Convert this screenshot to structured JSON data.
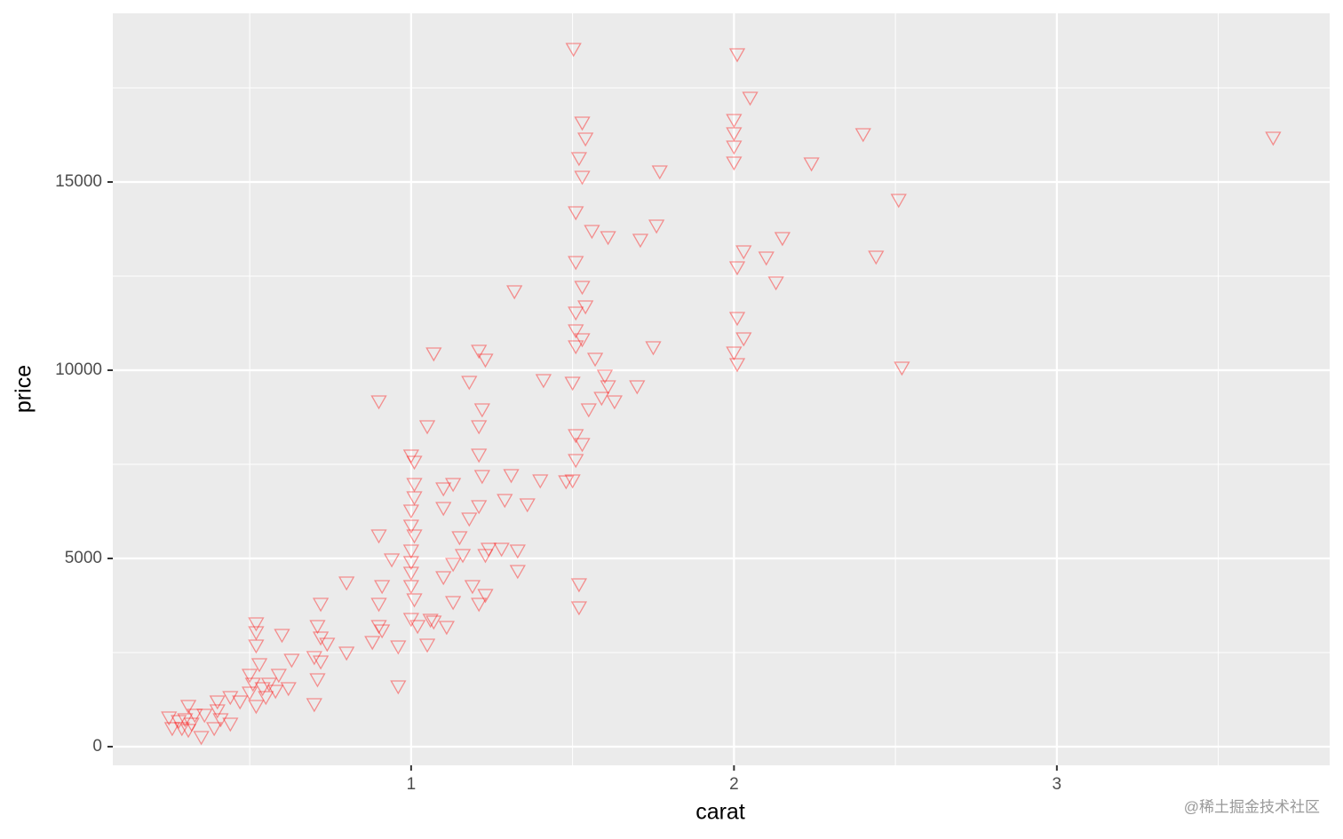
{
  "chart_data": {
    "type": "scatter",
    "x_label": "carat",
    "y_label": "price",
    "watermark": "@稀土掘金技术社区",
    "xlim": [
      0.076,
      3.845
    ],
    "ylim": [
      -495,
      19481
    ],
    "xticks": [
      1,
      2,
      3
    ],
    "yticks": [
      0,
      5000,
      10000,
      15000
    ],
    "grid": true,
    "marker": "triangle-down",
    "color": "#ff0000",
    "series": [
      {
        "name": "diamonds",
        "x": [
          1.503,
          2.01,
          2.05,
          2.0,
          2.0,
          2.0,
          2.0,
          2.4,
          3.67,
          2.24,
          2.51,
          1.53,
          1.54,
          1.52,
          1.53,
          1.77,
          1.51,
          1.56,
          1.61,
          1.71,
          1.76,
          2.15,
          2.03,
          2.1,
          2.01,
          2.13,
          2.44,
          1.51,
          1.53,
          1.32,
          1.54,
          1.51,
          1.51,
          1.53,
          1.51,
          2.01,
          2.03,
          2.0,
          2.01,
          1.75,
          2.52,
          1.07,
          1.21,
          1.23,
          1.18,
          1.41,
          1.5,
          1.57,
          1.6,
          1.61,
          1.59,
          1.63,
          1.55,
          1.7,
          0.9,
          1.22,
          1.21,
          1.05,
          1.51,
          1.53,
          1.51,
          1.5,
          1.48,
          1.31,
          1.4,
          1.22,
          1.21,
          1.29,
          1.36,
          1.13,
          1.1,
          1.1,
          1.18,
          1.21,
          1.0,
          1.01,
          1.01,
          1.01,
          1.0,
          1.0,
          1.01,
          1.0,
          1.0,
          1.0,
          1.0,
          1.01,
          1.0,
          1.02,
          1.05,
          1.06,
          0.9,
          0.94,
          0.91,
          0.9,
          0.9,
          0.91,
          0.88,
          0.96,
          0.8,
          0.72,
          0.71,
          0.72,
          0.72,
          0.7,
          0.71,
          0.7,
          0.74,
          0.8,
          0.96,
          1.1,
          1.13,
          1.16,
          1.19,
          1.23,
          1.21,
          1.11,
          1.13,
          1.07,
          1.15,
          1.24,
          1.28,
          1.33,
          1.33,
          1.23,
          1.52,
          1.52,
          0.52,
          0.52,
          0.52,
          0.53,
          0.6,
          0.63,
          0.51,
          0.54,
          0.56,
          0.5,
          0.47,
          0.44,
          0.55,
          0.58,
          0.62,
          0.59,
          0.52,
          0.5,
          0.3,
          0.32,
          0.29,
          0.33,
          0.28,
          0.36,
          0.4,
          0.41,
          0.39,
          0.26,
          0.25,
          0.31,
          0.35,
          0.44,
          0.4,
          0.31
        ],
        "values": [
          18538,
          18396,
          17241,
          16651,
          16297,
          15943,
          15519,
          16274,
          16179,
          15495,
          14528,
          16580,
          16156,
          15637,
          15141,
          15283,
          14198,
          13703,
          13538,
          13467,
          13844,
          13514,
          13160,
          12995,
          12736,
          12335,
          13019,
          12877,
          12217,
          12099,
          11698,
          11533,
          11061,
          10825,
          10637,
          11392,
          10849,
          10472,
          10165,
          10613,
          10071,
          10448,
          10519,
          10283,
          9693,
          9740,
          9670,
          10307,
          9858,
          9575,
          9269,
          9175,
          8962,
          9575,
          9175,
          8962,
          8514,
          8514,
          8278,
          8042,
          7618,
          7075,
          7051,
          7217,
          7075,
          7193,
          7759,
          6557,
          6439,
          6981,
          6863,
          6344,
          6061,
          6392,
          7736,
          7571,
          6981,
          6627,
          6274,
          5873,
          5613,
          5212,
          4906,
          4623,
          4269,
          3915,
          3396,
          3208,
          2712,
          3373,
          5613,
          4976,
          4269,
          3797,
          3208,
          3090,
          2783,
          2665,
          4363,
          3797,
          3208,
          2901,
          2264,
          2382,
          1792,
          1132,
          2736,
          2500,
          1604,
          4505,
          4858,
          5094,
          4269,
          4033,
          3797,
          3184,
          3844,
          3325,
          5566,
          5259,
          5259,
          5212,
          4670,
          5094,
          4316,
          3703,
          3278,
          3042,
          2689,
          2193,
          2972,
          2311,
          1675,
          1557,
          1675,
          1439,
          1203,
          1321,
          1321,
          1486,
          1557,
          1910,
          1085,
          1910,
          731,
          613,
          495,
          849,
          684,
          849,
          967,
          731,
          495,
          495,
          778,
          1085,
          259,
          613,
          1203,
          448
        ]
      }
    ]
  }
}
